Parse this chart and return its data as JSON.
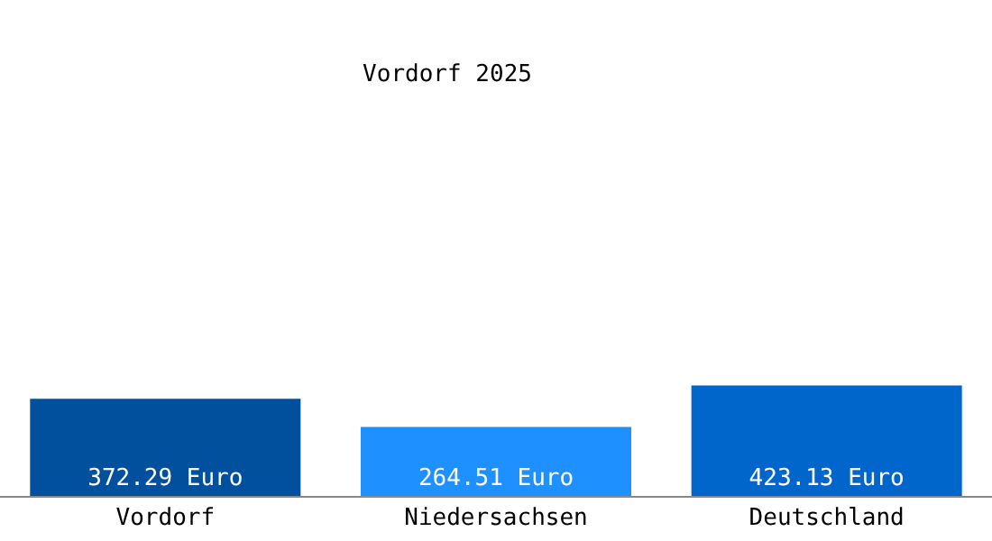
{
  "chart_data": {
    "type": "bar",
    "title": "Vordorf 2025",
    "categories": [
      "Vordorf",
      "Niedersachsen",
      "Deutschland"
    ],
    "values": [
      372.29,
      264.51,
      423.13
    ],
    "colors": [
      "#00509e",
      "#1e90ff",
      "#0066cc"
    ],
    "value_labels": [
      "372.29 Euro",
      "264.51 Euro",
      "423.13 Euro"
    ]
  }
}
